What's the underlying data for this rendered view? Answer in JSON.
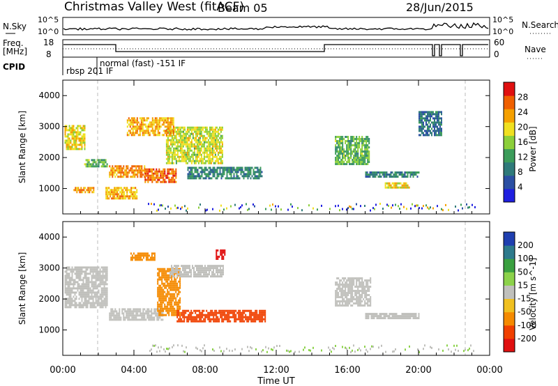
{
  "header": {
    "title": "Christmas Valley West (fitACF)",
    "beam": "Beam 05",
    "date": "28/Jun/2015"
  },
  "top_panel": {
    "left_labels": [
      "N.Sky",
      "Freq.",
      "[MHz]",
      "CPID"
    ],
    "right_labels": [
      "N.Search",
      "Nave"
    ],
    "nsky_ticks": [
      "10^5",
      "10^0"
    ],
    "nsearch_ticks": [
      "10^5",
      "10^0"
    ],
    "freq_ticks": [
      "18",
      "8"
    ],
    "nave_ticks": [
      "60",
      "0"
    ],
    "cpid_labels": [
      "rbsp 201 IF",
      "normal (fast) -151 IF"
    ]
  },
  "colors": {
    "power_scale": [
      "#1f1fe0",
      "#2b4fa3",
      "#2f7a7a",
      "#3c9c5a",
      "#8ccf3a",
      "#f0e020",
      "#f5a000",
      "#f06000",
      "#e01010"
    ],
    "velocity_scale": [
      "#1f3fb0",
      "#2d7a8c",
      "#3aa040",
      "#8cd24a",
      "#c8c8c8",
      "#f0c020",
      "#f58a00",
      "#f04000",
      "#e01010"
    ],
    "ground_scatter": "#c0c0bc"
  },
  "chart_data": [
    {
      "type": "heatmap",
      "name": "power",
      "ylabel": "Slant Range [km]",
      "ylim": [
        180,
        4500
      ],
      "yticks": [
        1000,
        2000,
        3000,
        4000
      ],
      "xlim": [
        0,
        24
      ],
      "colorbar": {
        "label": "Power [dB]",
        "ticks": [
          4,
          8,
          12,
          16,
          20,
          24,
          28
        ],
        "range": [
          0,
          32
        ]
      },
      "features": [
        {
          "t0": 0.1,
          "t1": 1.2,
          "r0": 2300,
          "r1": 3050,
          "value": 20
        },
        {
          "t0": 1.2,
          "t1": 2.5,
          "r0": 1700,
          "r1": 1950,
          "value": 14
        },
        {
          "t0": 2.6,
          "t1": 4.6,
          "r0": 1350,
          "r1": 1750,
          "value": 24
        },
        {
          "t0": 4.6,
          "t1": 6.4,
          "r0": 1200,
          "r1": 1650,
          "value": 27
        },
        {
          "t0": 5.8,
          "t1": 9.0,
          "r0": 1800,
          "r1": 3000,
          "value": 18
        },
        {
          "t0": 3.6,
          "t1": 6.2,
          "r0": 2700,
          "r1": 3300,
          "value": 22
        },
        {
          "t0": 2.4,
          "t1": 4.2,
          "r0": 700,
          "r1": 1050,
          "value": 22
        },
        {
          "t0": 0.6,
          "t1": 1.7,
          "r0": 850,
          "r1": 1050,
          "value": 24
        },
        {
          "t0": 7.0,
          "t1": 11.2,
          "r0": 1300,
          "r1": 1700,
          "value": 10
        },
        {
          "t0": 15.3,
          "t1": 17.2,
          "r0": 1800,
          "r1": 2700,
          "value": 14
        },
        {
          "t0": 17.0,
          "t1": 20.0,
          "r0": 1400,
          "r1": 1550,
          "value": 10
        },
        {
          "t0": 18.1,
          "t1": 19.5,
          "r0": 1050,
          "r1": 1200,
          "value": 20
        },
        {
          "t0": 20.0,
          "t1": 21.3,
          "r0": 2700,
          "r1": 3500,
          "value": 8
        }
      ]
    },
    {
      "type": "heatmap",
      "name": "velocity",
      "ylabel": "Slant Range [km]",
      "ylim": [
        180,
        4500
      ],
      "yticks": [
        1000,
        2000,
        3000,
        4000
      ],
      "xlim": [
        0,
        24
      ],
      "xlabel": "Time UT",
      "xticks": [
        "00:00",
        "04:00",
        "08:00",
        "12:00",
        "16:00",
        "20:00",
        "00:00"
      ],
      "colorbar": {
        "label": "Velocity [m s^-1]",
        "ticks": [
          200,
          100,
          50,
          15,
          -15,
          -50,
          -100,
          -200
        ]
      },
      "features": [
        {
          "t0": 0.1,
          "t1": 2.5,
          "r0": 1700,
          "r1": 3050,
          "value": 0
        },
        {
          "t0": 2.6,
          "t1": 5.6,
          "r0": 1300,
          "r1": 1700,
          "value": 0
        },
        {
          "t0": 5.3,
          "t1": 6.6,
          "r0": 1500,
          "r1": 3000,
          "value": -40
        },
        {
          "t0": 6.0,
          "t1": 9.0,
          "r0": 2700,
          "r1": 3100,
          "value": 0
        },
        {
          "t0": 6.4,
          "t1": 11.4,
          "r0": 1300,
          "r1": 1650,
          "value": -130
        },
        {
          "t0": 8.6,
          "t1": 9.1,
          "r0": 3300,
          "r1": 3600,
          "value": -220
        },
        {
          "t0": 15.3,
          "t1": 17.3,
          "r0": 1800,
          "r1": 2700,
          "value": 0
        },
        {
          "t0": 17.0,
          "t1": 20.0,
          "r0": 1350,
          "r1": 1550,
          "value": 0
        },
        {
          "t0": 3.8,
          "t1": 5.2,
          "r0": 3250,
          "r1": 3500,
          "value": -40
        }
      ]
    }
  ]
}
